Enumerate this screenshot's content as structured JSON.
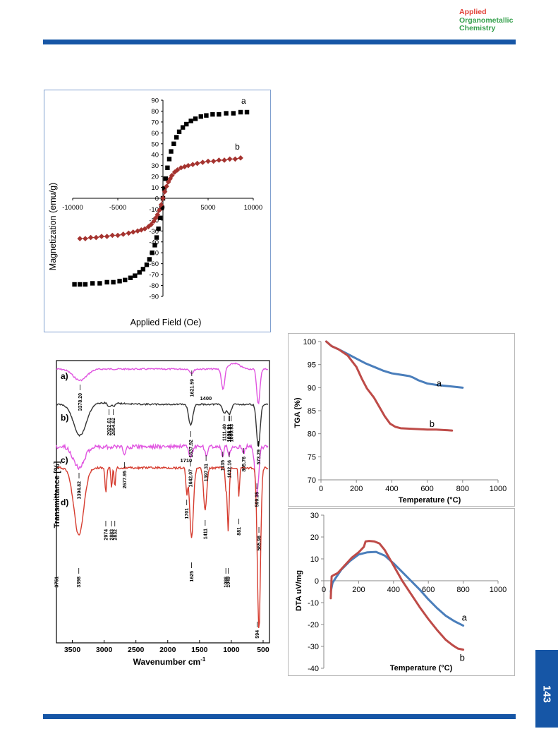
{
  "journal": {
    "line1": "Applied",
    "line2": "Organometallic",
    "line3": "Chemistry"
  },
  "page_number": "143",
  "chart_data": [
    {
      "type": "scatter",
      "xlabel": "Applied Field (Oe)",
      "ylabel": "Magnetization (emu/g)",
      "xlim": [
        -10000,
        10000
      ],
      "ylim": [
        -90,
        90
      ],
      "xticks": [
        "-10000",
        "-5000",
        "0",
        "5000",
        "10000"
      ],
      "yticks": [
        "-90",
        "-80",
        "-70",
        "-60",
        "-50",
        "-40",
        "-30",
        "-20",
        "-10",
        "0",
        "10",
        "20",
        "30",
        "40",
        "50",
        "60",
        "70",
        "80",
        "90"
      ],
      "colors": {
        "a": "#000000",
        "b": "#a5332f"
      },
      "series": [
        {
          "name": "a",
          "marker": "square",
          "x": [
            -9800,
            -9200,
            -8600,
            -7800,
            -7000,
            -6200,
            -5500,
            -4800,
            -4200,
            -3600,
            -3100,
            -2600,
            -2200,
            -1800,
            -1500,
            -1200,
            -900,
            -700,
            -500,
            -300,
            -150,
            0,
            150,
            300,
            500,
            700,
            900,
            1200,
            1500,
            1800,
            2200,
            2600,
            3100,
            3600,
            4200,
            4800,
            5500,
            6200,
            7000,
            7800,
            8600,
            9300
          ],
          "y": [
            -79,
            -79,
            -79,
            -78,
            -78,
            -77,
            -77,
            -76,
            -75,
            -73,
            -71,
            -68,
            -65,
            -61,
            -56,
            -50,
            -43,
            -36,
            -28,
            -18,
            -9,
            0,
            9,
            18,
            28,
            36,
            43,
            50,
            56,
            61,
            65,
            68,
            71,
            73,
            75,
            76,
            77,
            77,
            78,
            78,
            79,
            79
          ]
        },
        {
          "name": "b",
          "marker": "diamond",
          "x": [
            -9200,
            -8600,
            -8000,
            -7400,
            -6800,
            -6200,
            -5600,
            -5000,
            -4400,
            -3800,
            -3300,
            -2800,
            -2400,
            -2000,
            -1600,
            -1300,
            -1000,
            -800,
            -600,
            -400,
            -200,
            0,
            200,
            400,
            600,
            800,
            1000,
            1300,
            1600,
            2000,
            2400,
            2800,
            3300,
            3800,
            4400,
            5000,
            5600,
            6200,
            6800,
            7400,
            8000,
            8600
          ],
          "y": [
            -37,
            -37,
            -36,
            -36,
            -35,
            -35,
            -34,
            -34,
            -33,
            -32,
            -31,
            -30,
            -29,
            -28,
            -26,
            -24,
            -21,
            -18,
            -15,
            -11,
            -6,
            0,
            6,
            11,
            15,
            18,
            21,
            24,
            26,
            28,
            29,
            30,
            31,
            32,
            33,
            34,
            34,
            35,
            35,
            36,
            36,
            37
          ]
        }
      ]
    },
    {
      "type": "line",
      "xlabel": "Wavenumber cm",
      "xlabel_sup": "-1",
      "ylabel": "Transmittance [%]",
      "xticks": [
        "3500",
        "3000",
        "2500",
        "2000",
        "1500",
        "1000",
        "500"
      ],
      "curve_labels": [
        "a)",
        "b)",
        "c)",
        "d)"
      ],
      "colors": {
        "a": "#e054e0",
        "b": "#333333",
        "c": "#e054e0",
        "d": "#d63c2f"
      },
      "peak_labels": {
        "a": [
          "3378.20",
          "1621.59",
          "1400"
        ],
        "b": [
          "2922.61",
          "2854.62",
          "1637.92",
          "1111.40",
          "1036.91",
          "1028.33",
          "1000.93",
          "573.29"
        ],
        "c": [
          "3394.82",
          "2677.95",
          "1710",
          "1642.07",
          "1397.31",
          "1135",
          "1032.16",
          "805.76",
          "599.35"
        ],
        "d": [
          "3751",
          "3398",
          "2974",
          "2883",
          "2832",
          "1701",
          "1625",
          "1411",
          "1086",
          "1049",
          "881",
          "565.98",
          "594"
        ]
      }
    },
    {
      "type": "line",
      "xlabel": "Temperature (°C)",
      "ylabel": "TGA (%)",
      "xlim": [
        0,
        1000
      ],
      "ylim": [
        70,
        100
      ],
      "xticks": [
        "0",
        "200",
        "400",
        "600",
        "800",
        "1000"
      ],
      "yticks": [
        "100",
        "95",
        "90",
        "85",
        "80",
        "75",
        "70"
      ],
      "colors": {
        "a": "#4a7ebb",
        "b": "#be4b48"
      },
      "series": [
        {
          "name": "a",
          "x": [
            30,
            60,
            100,
            150,
            200,
            250,
            300,
            350,
            400,
            450,
            500,
            520,
            550,
            600,
            650,
            700,
            750,
            800
          ],
          "y": [
            100,
            99,
            98.3,
            97.3,
            96.3,
            95.3,
            94.5,
            93.7,
            93.1,
            92.8,
            92.5,
            92.2,
            91.6,
            90.9,
            90.6,
            90.4,
            90.2,
            90.0
          ]
        },
        {
          "name": "b",
          "x": [
            30,
            60,
            100,
            150,
            200,
            230,
            260,
            300,
            330,
            360,
            390,
            420,
            450,
            500,
            550,
            600,
            650,
            700,
            740
          ],
          "y": [
            100,
            99,
            98.3,
            97,
            94.5,
            92,
            89.8,
            87.8,
            85.8,
            83.8,
            82.2,
            81.5,
            81.2,
            81.1,
            81.0,
            80.9,
            80.9,
            80.8,
            80.7
          ]
        }
      ],
      "curve_labels": {
        "a": "a",
        "b": "b"
      }
    },
    {
      "type": "line",
      "xlabel": "Temperature (°C)",
      "ylabel": "DTA uV/mg",
      "xlim": [
        0,
        1000
      ],
      "ylim": [
        -40,
        30
      ],
      "xticks": [
        "0",
        "200",
        "400",
        "600",
        "800",
        "1000"
      ],
      "yticks": [
        "30",
        "20",
        "10",
        "0",
        "-10",
        "-20",
        "-30",
        "-40"
      ],
      "colors": {
        "a": "#4a7ebb",
        "b": "#be4b48"
      },
      "series": [
        {
          "name": "a",
          "x": [
            40,
            50,
            70,
            100,
            150,
            200,
            250,
            300,
            350,
            400,
            450,
            500,
            550,
            600,
            650,
            700,
            750,
            800
          ],
          "y": [
            -5,
            -1,
            1.5,
            5,
            9,
            12,
            13,
            13.2,
            11.5,
            8,
            4,
            0,
            -4,
            -8.5,
            -12.5,
            -16,
            -18.5,
            -20.5
          ]
        },
        {
          "name": "b",
          "x": [
            40,
            45,
            55,
            80,
            120,
            160,
            200,
            230,
            240,
            260,
            290,
            320,
            350,
            400,
            450,
            500,
            550,
            600,
            650,
            700,
            740,
            770,
            800
          ],
          "y": [
            -8,
            2,
            2.5,
            3.5,
            7,
            10.5,
            13,
            15.5,
            18,
            18.2,
            18,
            17,
            14,
            7,
            0,
            -6,
            -12,
            -17.5,
            -22.5,
            -27,
            -29.5,
            -31,
            -31.5
          ]
        }
      ],
      "curve_labels": {
        "a": "a",
        "b": "b"
      }
    }
  ]
}
